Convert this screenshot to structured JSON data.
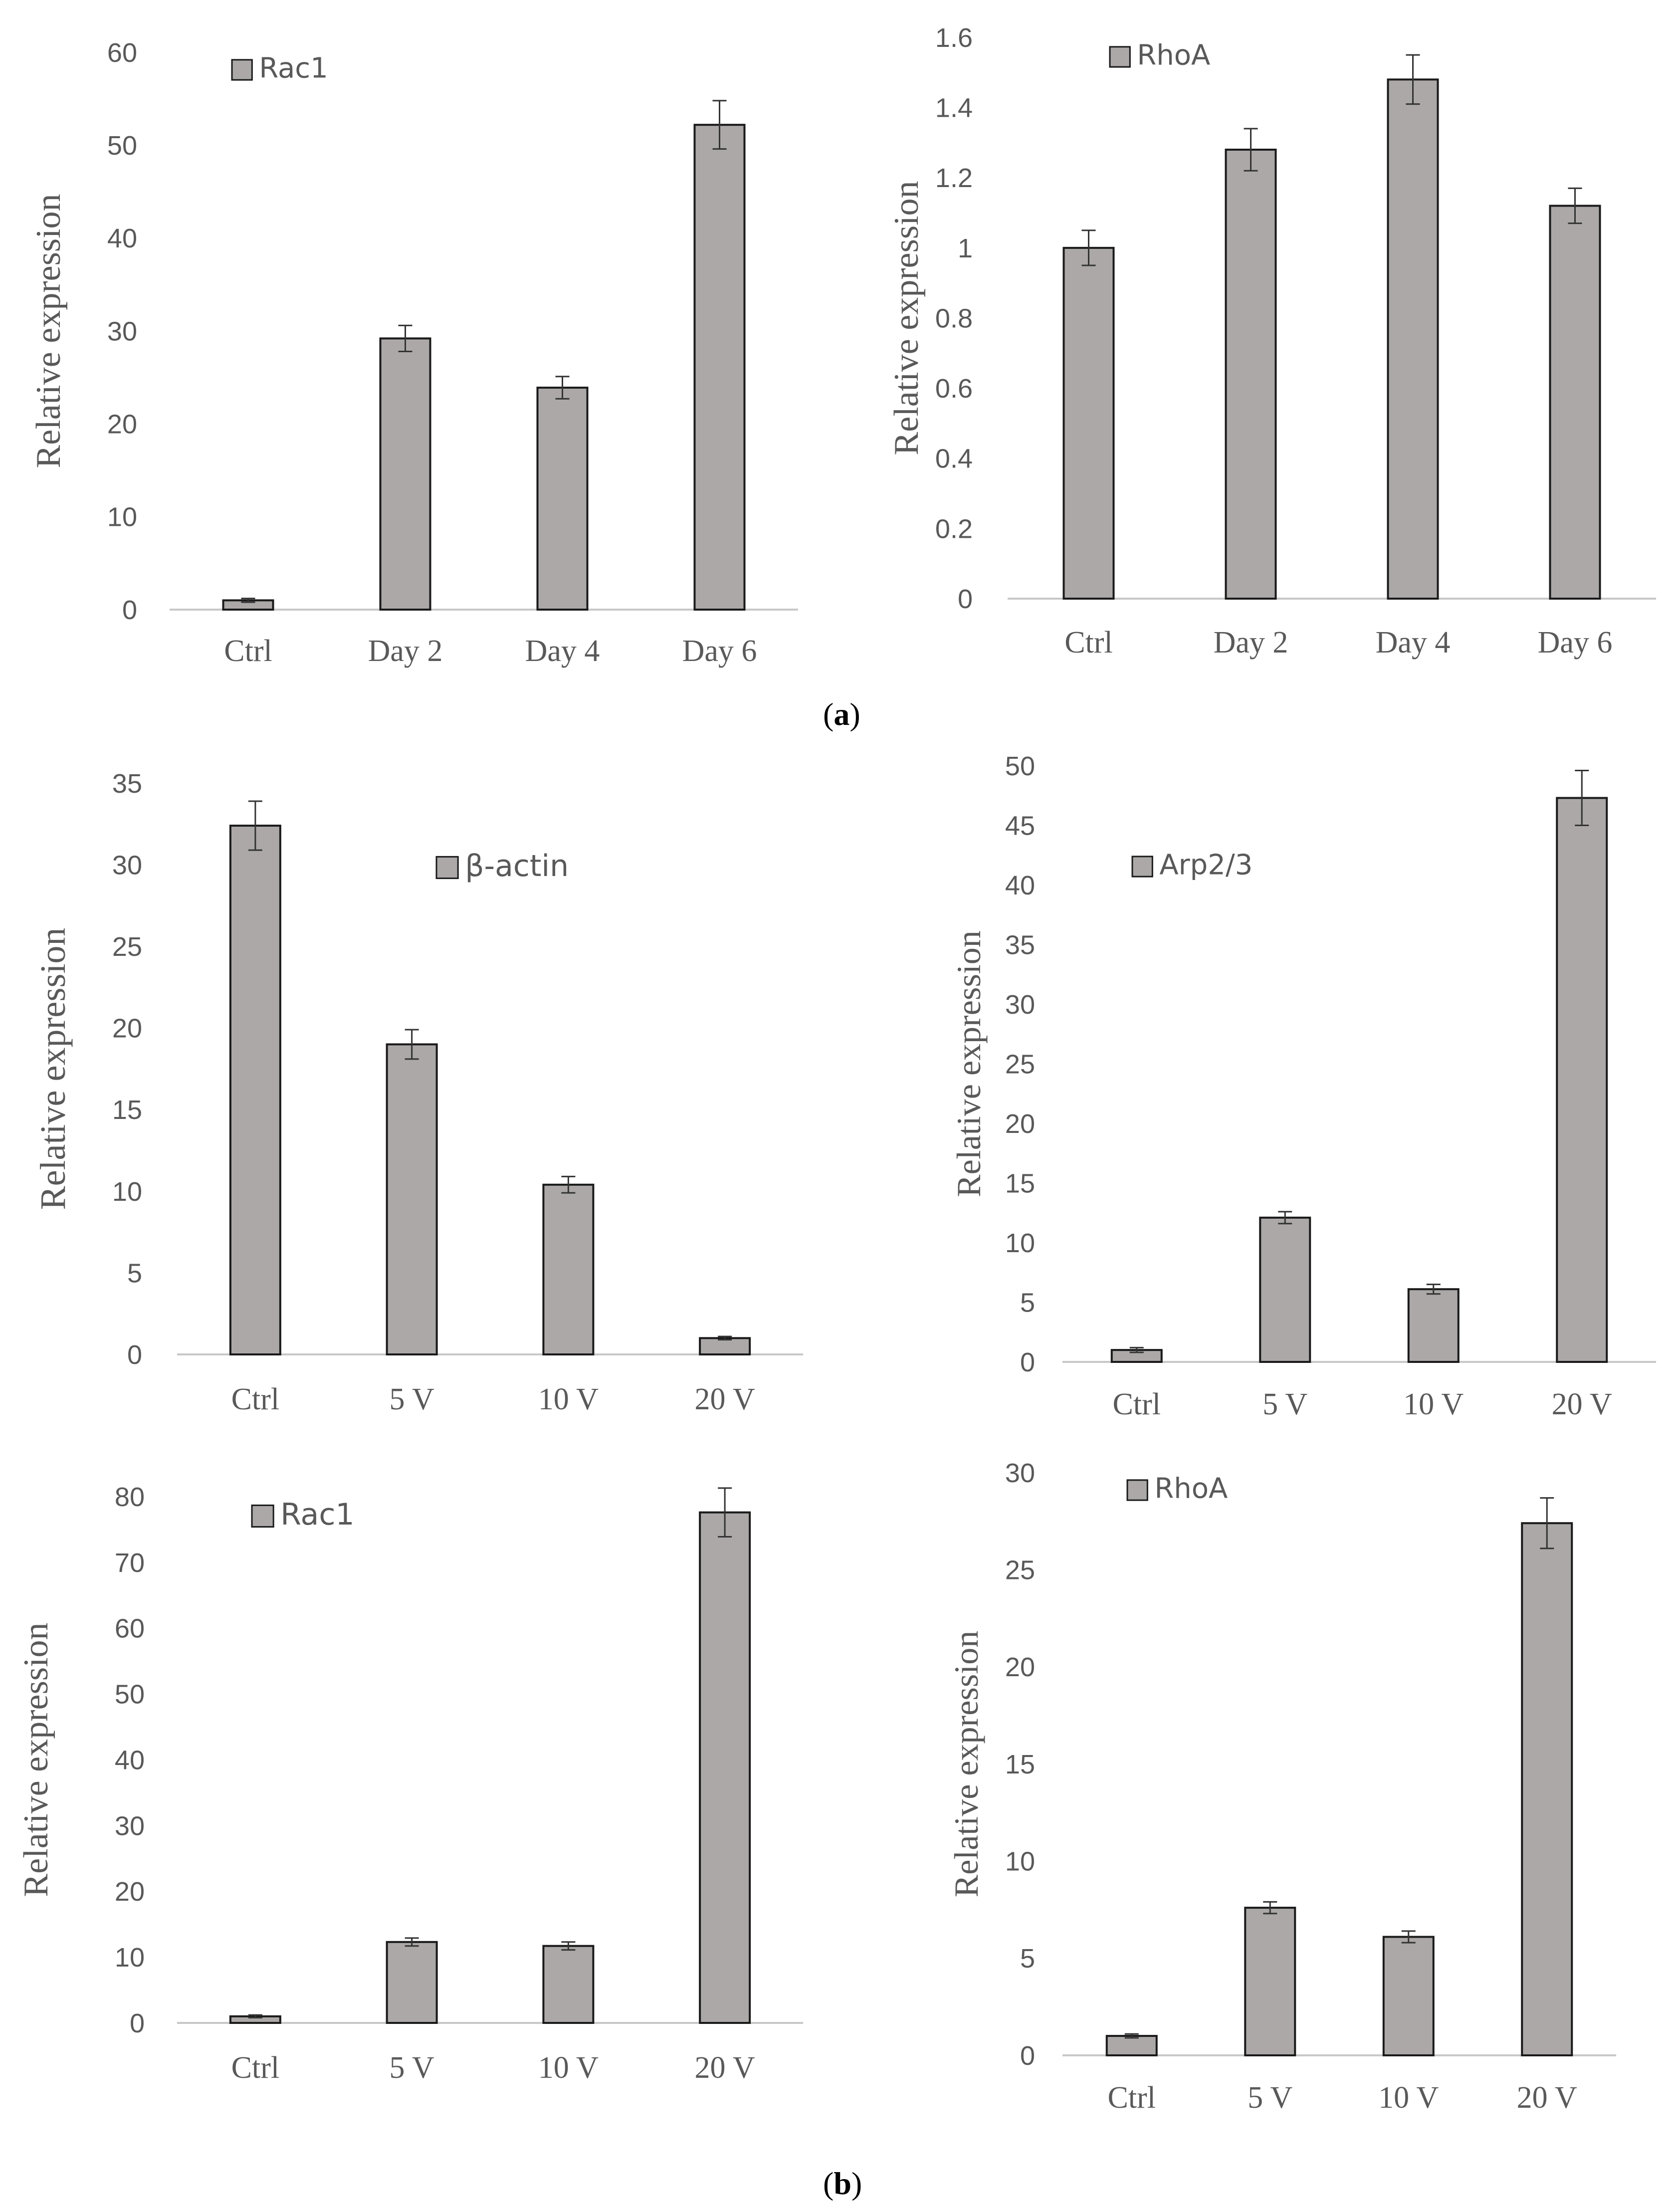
{
  "panel_labels": {
    "a": "a",
    "b": "b"
  },
  "chart_data": [
    {
      "type": "bar",
      "legend": "Rac1",
      "categories": [
        "Ctrl",
        "Day 2",
        "Day 4",
        "Day 6"
      ],
      "values": [
        1.0,
        29.2,
        23.9,
        52.2
      ],
      "errors": [
        0.2,
        1.4,
        1.2,
        2.6
      ],
      "ylabel": "Relative expression",
      "ylim": [
        0,
        60
      ],
      "yticks": [
        "0",
        "10",
        "20",
        "30",
        "40",
        "50",
        "60"
      ],
      "grid": false,
      "legend_position": "top-left"
    },
    {
      "type": "bar",
      "legend": "RhoA",
      "categories": [
        "Ctrl",
        "Day 2",
        "Day 4",
        "Day 6"
      ],
      "values": [
        1.0,
        1.28,
        1.48,
        1.12
      ],
      "errors": [
        0.05,
        0.06,
        0.07,
        0.05
      ],
      "ylabel": "Relative expression",
      "ylim": [
        0,
        1.6
      ],
      "yticks": [
        "0",
        "0.2",
        "0.4",
        "0.6",
        "0.8",
        "1",
        "1.2",
        "1.4",
        "1.6"
      ],
      "grid": false,
      "legend_position": "top-left"
    },
    {
      "type": "bar",
      "legend": "β-actin",
      "categories": [
        "Ctrl",
        "5 V",
        "10 V",
        "20 V"
      ],
      "values": [
        32.4,
        19.0,
        10.4,
        1.0
      ],
      "errors": [
        1.5,
        0.9,
        0.5,
        0.1
      ],
      "ylabel": "Relative expression",
      "ylim": [
        0,
        35
      ],
      "yticks": [
        "0",
        "5",
        "10",
        "15",
        "20",
        "25",
        "30",
        "35"
      ],
      "grid": false,
      "legend_position": "top-center"
    },
    {
      "type": "bar",
      "legend": "Arp2/3",
      "categories": [
        "Ctrl",
        "5 V",
        "10 V",
        "20 V"
      ],
      "values": [
        1.0,
        12.1,
        6.1,
        47.3
      ],
      "errors": [
        0.2,
        0.5,
        0.4,
        2.3
      ],
      "ylabel": "Relative expression",
      "ylim": [
        0,
        50
      ],
      "yticks": [
        "0",
        "5",
        "10",
        "15",
        "20",
        "25",
        "30",
        "35",
        "40",
        "45",
        "50"
      ],
      "grid": false,
      "legend_position": "top-left"
    },
    {
      "type": "bar",
      "legend": "Rac1",
      "categories": [
        "Ctrl",
        "5 V",
        "10 V",
        "20 V"
      ],
      "values": [
        1.0,
        12.3,
        11.7,
        77.6
      ],
      "errors": [
        0.2,
        0.6,
        0.6,
        3.7
      ],
      "ylabel": "Relative expression",
      "ylim": [
        0,
        80
      ],
      "yticks": [
        "0",
        "10",
        "20",
        "30",
        "40",
        "50",
        "60",
        "70",
        "80"
      ],
      "grid": false,
      "legend_position": "top-left"
    },
    {
      "type": "bar",
      "legend": "RhoA",
      "categories": [
        "Ctrl",
        "5 V",
        "10 V",
        "20 V"
      ],
      "values": [
        1.0,
        7.6,
        6.1,
        27.4
      ],
      "errors": [
        0.1,
        0.3,
        0.3,
        1.3
      ],
      "ylabel": "Relative expression",
      "ylim": [
        0,
        30
      ],
      "yticks": [
        "0",
        "5",
        "10",
        "15",
        "20",
        "25",
        "30"
      ],
      "grid": false,
      "legend_position": "top-left"
    }
  ],
  "colors": {
    "bar_fill": "#aca8a8",
    "bar_stroke": "#1a1a1a",
    "axis": "#c8c8c8",
    "tick_text": "#595959",
    "category_text": "#595959",
    "ylabel_text": "#595959",
    "legend_text": "#595959"
  }
}
